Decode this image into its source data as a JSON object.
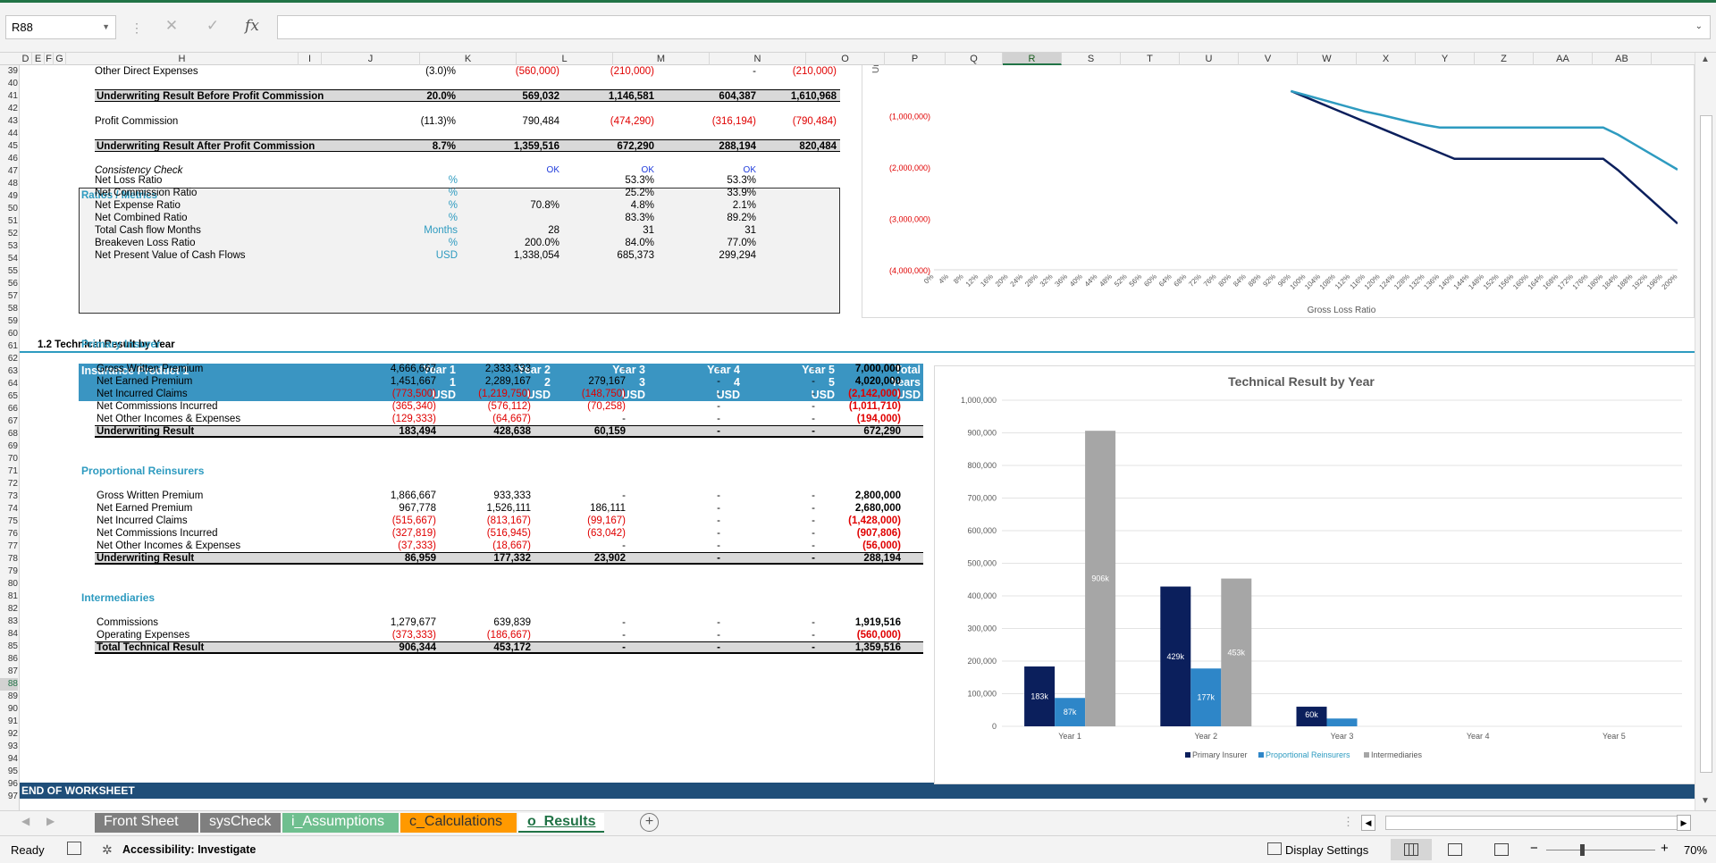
{
  "app": {
    "name_box": "R88",
    "fx": "fx",
    "sheet_end_label": "END OF WORKSHEET"
  },
  "columns": [
    "D",
    "E",
    "F",
    "G",
    "H",
    "I",
    "J",
    "K",
    "L",
    "M",
    "N",
    "O",
    "P",
    "Q",
    "R",
    "S",
    "T",
    "U",
    "V",
    "W",
    "X",
    "Y",
    "Z",
    "AA",
    "AB"
  ],
  "selected_column": "R",
  "rows": [
    "39",
    "40",
    "41",
    "42",
    "43",
    "44",
    "45",
    "46",
    "47",
    "48",
    "49",
    "50",
    "51",
    "52",
    "53",
    "54",
    "55",
    "56",
    "57",
    "58",
    "59",
    "60",
    "61",
    "62",
    "63",
    "64",
    "65",
    "66",
    "67",
    "68",
    "69",
    "70",
    "71",
    "72",
    "73",
    "74",
    "75",
    "76",
    "77",
    "78",
    "79",
    "80",
    "81",
    "82",
    "83",
    "84",
    "85",
    "86",
    "87",
    "88",
    "89",
    "90",
    "91",
    "92",
    "93",
    "94",
    "95",
    "96",
    "97"
  ],
  "selected_row": "88",
  "top": {
    "other_direct": {
      "label": "Other Direct Expenses",
      "j": "(3.0)%",
      "k": "(560,000)",
      "l": "(210,000)",
      "m": "-",
      "n": "(210,000)"
    },
    "uw_before": {
      "label": "Underwriting Result Before Profit Commission",
      "j": "20.0%",
      "k": "569,032",
      "l": "1,146,581",
      "m": "604,387",
      "n": "1,610,968"
    },
    "profit_comm": {
      "label": "Profit Commission",
      "j": "(11.3)%",
      "k": "790,484",
      "l": "(474,290)",
      "m": "(316,194)",
      "n": "(790,484)"
    },
    "uw_after": {
      "label": "Underwriting Result After Profit Commission",
      "j": "8.7%",
      "k": "1,359,516",
      "l": "672,290",
      "m": "288,194",
      "n": "820,484"
    },
    "consistency": {
      "label": "Consistency Check",
      "k": "OK",
      "l": "OK",
      "m": "OK"
    },
    "ratios_title": "Ratios / Metrics",
    "ratios": [
      {
        "label": "Net Loss Ratio",
        "unit": "%",
        "k": "",
        "l": "53.3%",
        "m": "53.3%"
      },
      {
        "label": "Net Commission Ratio",
        "unit": "%",
        "k": "",
        "l": "25.2%",
        "m": "33.9%"
      },
      {
        "label": "Net Expense Ratio",
        "unit": "%",
        "k": "70.8%",
        "l": "4.8%",
        "m": "2.1%"
      },
      {
        "label": "Net Combined Ratio",
        "unit": "%",
        "k": "",
        "l": "83.3%",
        "m": "89.2%"
      },
      {
        "label": "Total Cash flow Months",
        "unit": "Months",
        "k": "28",
        "l": "31",
        "m": "31"
      },
      {
        "label": "Breakeven Loss Ratio",
        "unit": "%",
        "k": "200.0%",
        "l": "84.0%",
        "m": "77.0%"
      },
      {
        "label": "Net Present Value of Cash Flows",
        "unit": "USD",
        "k": "1,338,054",
        "l": "685,373",
        "m": "299,294"
      }
    ]
  },
  "section_title": "1.2  Technical Result by Year",
  "table_header": {
    "product": "Insurance Product 1",
    "cols": [
      {
        "a": "Year 1",
        "b": "1",
        "c": "USD"
      },
      {
        "a": "Year 2",
        "b": "2",
        "c": "USD"
      },
      {
        "a": "Year 3",
        "b": "3",
        "c": "USD"
      },
      {
        "a": "Year 4",
        "b": "4",
        "c": "USD"
      },
      {
        "a": "Year 5",
        "b": "5",
        "c": "USD"
      },
      {
        "a": "Total",
        "b": "Years",
        "c": "USD"
      }
    ]
  },
  "groups": [
    {
      "title": "Primary Insurer",
      "rows": [
        {
          "label": "Gross Written Premium",
          "v": [
            "4,666,667",
            "2,333,333",
            "-",
            "-",
            "-",
            "7,000,000"
          ]
        },
        {
          "label": "Net Earned Premium",
          "v": [
            "1,451,667",
            "2,289,167",
            "279,167",
            "-",
            "-",
            "4,020,000"
          ]
        },
        {
          "label": "Net Incurred Claims",
          "v": [
            "(773,500)",
            "(1,219,750)",
            "(148,750)",
            "-",
            "-",
            "(2,142,000)"
          ]
        },
        {
          "label": "Net Commissions Incurred",
          "v": [
            "(365,340)",
            "(576,112)",
            "(70,258)",
            "-",
            "-",
            "(1,011,710)"
          ]
        },
        {
          "label": "Net Other Incomes & Expenses",
          "v": [
            "(129,333)",
            "(64,667)",
            "-",
            "-",
            "-",
            "(194,000)"
          ]
        },
        {
          "label": "Underwriting Result",
          "v": [
            "183,494",
            "428,638",
            "60,159",
            "-",
            "-",
            "672,290"
          ],
          "total": true
        }
      ]
    },
    {
      "title": "Proportional Reinsurers",
      "rows": [
        {
          "label": "Gross Written Premium",
          "v": [
            "1,866,667",
            "933,333",
            "-",
            "-",
            "-",
            "2,800,000"
          ]
        },
        {
          "label": "Net Earned Premium",
          "v": [
            "967,778",
            "1,526,111",
            "186,111",
            "-",
            "-",
            "2,680,000"
          ]
        },
        {
          "label": "Net Incurred Claims",
          "v": [
            "(515,667)",
            "(813,167)",
            "(99,167)",
            "-",
            "-",
            "(1,428,000)"
          ]
        },
        {
          "label": "Net Commissions Incurred",
          "v": [
            "(327,819)",
            "(516,945)",
            "(63,042)",
            "-",
            "-",
            "(907,806)"
          ]
        },
        {
          "label": "Net Other Incomes & Expenses",
          "v": [
            "(37,333)",
            "(18,667)",
            "-",
            "-",
            "-",
            "(56,000)"
          ]
        },
        {
          "label": "Underwriting Result",
          "v": [
            "86,959",
            "177,332",
            "23,902",
            "-",
            "-",
            "288,194"
          ],
          "total": true
        }
      ]
    },
    {
      "title": "Intermediaries",
      "rows": [
        {
          "label": "Commissions",
          "v": [
            "1,279,677",
            "639,839",
            "-",
            "-",
            "-",
            "1,919,516"
          ]
        },
        {
          "label": "Operating Expenses",
          "v": [
            "(373,333)",
            "(186,667)",
            "-",
            "-",
            "-",
            "(560,000)"
          ]
        },
        {
          "label": "Total Technical Result",
          "v": [
            "906,344",
            "453,172",
            "-",
            "-",
            "-",
            "1,359,516"
          ],
          "total": true
        }
      ]
    }
  ],
  "tabs": [
    {
      "label": "Front Sheet",
      "color": "#7f7f7f"
    },
    {
      "label": "sysCheck",
      "color": "#7f7f7f"
    },
    {
      "label": "i_Assumptions",
      "color": "#6fbf8f"
    },
    {
      "label": "c_Calculations",
      "color": "#ff9900"
    },
    {
      "label": "o_Results",
      "color": "#ffffff",
      "active": true
    }
  ],
  "status": {
    "ready": "Ready",
    "accessibility": "Accessibility: Investigate",
    "display": "Display Settings",
    "zoom": "70%"
  },
  "chart_data": [
    {
      "type": "line",
      "title": "",
      "xlabel": "Gross Loss Ratio",
      "ylabel": "Underwriting Result",
      "ylim": [
        -4000000,
        0
      ],
      "y_ticks": [
        "(1,000,000)",
        "(2,000,000)",
        "(3,000,000)",
        "(4,000,000)"
      ],
      "y_tick_values": [
        -1000000,
        -2000000,
        -3000000,
        -4000000
      ],
      "x_ticks": [
        "0%",
        "4%",
        "8%",
        "12%",
        "16%",
        "20%",
        "24%",
        "28%",
        "32%",
        "36%",
        "40%",
        "44%",
        "48%",
        "52%",
        "56%",
        "60%",
        "64%",
        "68%",
        "72%",
        "76%",
        "80%",
        "84%",
        "88%",
        "92%",
        "96%",
        "100%",
        "104%",
        "108%",
        "112%",
        "116%",
        "120%",
        "124%",
        "128%",
        "132%",
        "136%",
        "140%",
        "144%",
        "148%",
        "152%",
        "156%",
        "160%",
        "164%",
        "168%",
        "172%",
        "176%",
        "180%",
        "184%",
        "188%",
        "192%",
        "196%",
        "200%"
      ],
      "series": [
        {
          "color": "#0b1f5c",
          "x": [
            0.96,
            1.0,
            1.04,
            1.08,
            1.12,
            1.16,
            1.2,
            1.24,
            1.28,
            1.32,
            1.36,
            1.4,
            1.44,
            1.48,
            1.52,
            1.56,
            1.6,
            1.64,
            1.68,
            1.72,
            1.76,
            1.8,
            1.84,
            1.88,
            1.92,
            1.96,
            2.0
          ],
          "y": [
            -520000,
            -640000,
            -760000,
            -880000,
            -1000000,
            -1120000,
            -1240000,
            -1360000,
            -1480000,
            -1600000,
            -1720000,
            -1840000,
            -1840000,
            -1840000,
            -1840000,
            -1840000,
            -1840000,
            -1840000,
            -1840000,
            -1840000,
            -1840000,
            -1840000,
            -2060000,
            -2320000,
            -2580000,
            -2840000,
            -3100000
          ]
        },
        {
          "color": "#2e9bc0",
          "x": [
            0.96,
            1.0,
            1.04,
            1.08,
            1.12,
            1.16,
            1.2,
            1.24,
            1.28,
            1.32,
            1.36,
            1.4,
            1.44,
            1.48,
            1.52,
            1.56,
            1.6,
            1.64,
            1.68,
            1.72,
            1.76,
            1.8,
            1.84,
            1.88,
            1.92,
            1.96,
            2.0
          ],
          "y": [
            -520000,
            -600000,
            -680000,
            -760000,
            -840000,
            -920000,
            -980000,
            -1050000,
            -1120000,
            -1180000,
            -1230000,
            -1230000,
            -1230000,
            -1230000,
            -1230000,
            -1230000,
            -1230000,
            -1230000,
            -1230000,
            -1230000,
            -1230000,
            -1230000,
            -1370000,
            -1540000,
            -1710000,
            -1880000,
            -2050000
          ]
        }
      ]
    },
    {
      "type": "bar",
      "title": "Technical Result by Year",
      "ylim": [
        0,
        1000000
      ],
      "y_ticks": [
        "0",
        "100,000",
        "200,000",
        "300,000",
        "400,000",
        "500,000",
        "600,000",
        "700,000",
        "800,000",
        "900,000",
        "1,000,000"
      ],
      "categories": [
        "Year 1",
        "Year 2",
        "Year 3",
        "Year 4",
        "Year 5"
      ],
      "series": [
        {
          "name": "Primary Insurer",
          "color": "#0b1f5c",
          "values": [
            183494,
            428638,
            60159,
            0,
            0
          ],
          "labels": [
            "183k",
            "429k",
            "60k",
            "",
            ""
          ]
        },
        {
          "name": "Proportional Reinsurers",
          "color": "#2e86c8",
          "values": [
            86959,
            177332,
            23902,
            0,
            0
          ],
          "labels": [
            "87k",
            "177k",
            "",
            "",
            ""
          ]
        },
        {
          "name": "Intermediaries",
          "color": "#a6a6a6",
          "values": [
            906344,
            453172,
            0,
            0,
            0
          ],
          "labels": [
            "906k",
            "453k",
            "",
            "",
            ""
          ]
        }
      ]
    }
  ]
}
